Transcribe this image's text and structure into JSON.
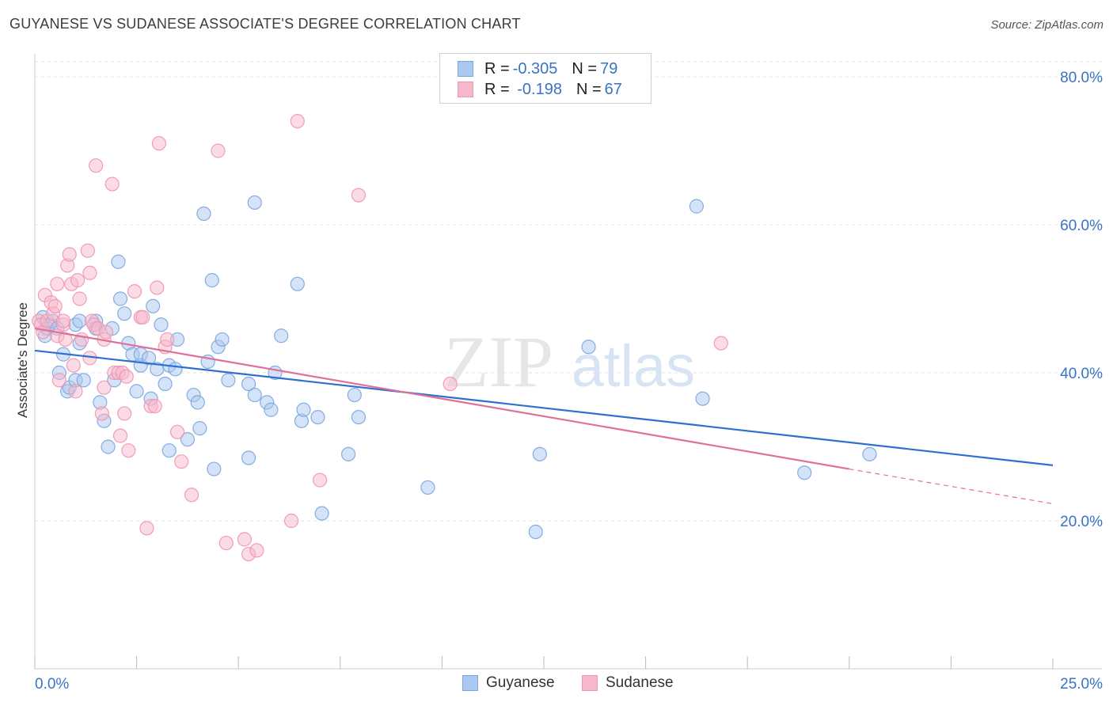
{
  "title": "GUYANESE VS SUDANESE ASSOCIATE'S DEGREE CORRELATION CHART",
  "source": "Source: ZipAtlas.com",
  "legend": {
    "rows": [
      {
        "r_label": "R = ",
        "r_value": "-0.305",
        "n_label": "N = ",
        "n_value": "79"
      },
      {
        "r_label": "R = ",
        "r_value": " -0.198",
        "n_label": "N = ",
        "n_value": "67"
      }
    ],
    "bottom": [
      "Guyanese",
      "Sudanese"
    ]
  },
  "watermark": {
    "zip": "ZIP",
    "atlas": "atlas"
  },
  "colors": {
    "guyanese_fill": "#aac8f0",
    "guyanese_stroke": "#7aa5de",
    "guyanese_line": "#2f6fd0",
    "sudanese_fill": "#f8b8cc",
    "sudanese_stroke": "#ee95b0",
    "sudanese_line": "#e0709a",
    "tick_label": "#3a72c4"
  },
  "chart_data": {
    "type": "scatter",
    "title": "GUYANESE VS SUDANESE ASSOCIATE'S DEGREE CORRELATION CHART",
    "xlabel": "",
    "ylabel": "Associate's Degree",
    "xlim": [
      0,
      25
    ],
    "ylim": [
      0,
      80
    ],
    "x_tick_labels": [
      "0.0%",
      "25.0%"
    ],
    "y_ticks": [
      20,
      40,
      60,
      80
    ],
    "y_tick_labels": [
      "20.0%",
      "40.0%",
      "60.0%",
      "80.0%"
    ],
    "grid": true,
    "series": [
      {
        "name": "Guyanese",
        "R": -0.305,
        "N": 79,
        "trend": {
          "x0": 0,
          "y0": 43.0,
          "x1": 25,
          "y1": 27.5
        },
        "points": [
          [
            0.2,
            47.5
          ],
          [
            0.25,
            45
          ],
          [
            0.35,
            46.5
          ],
          [
            0.3,
            46
          ],
          [
            0.45,
            47
          ],
          [
            0.55,
            46
          ],
          [
            0.6,
            40
          ],
          [
            0.7,
            42.5
          ],
          [
            0.8,
            37.5
          ],
          [
            0.85,
            38
          ],
          [
            1.0,
            39
          ],
          [
            1.0,
            46.5
          ],
          [
            1.1,
            44
          ],
          [
            1.2,
            39
          ],
          [
            1.1,
            47
          ],
          [
            1.5,
            47
          ],
          [
            1.5,
            46
          ],
          [
            1.6,
            36
          ],
          [
            1.7,
            33.5
          ],
          [
            1.8,
            30
          ],
          [
            1.9,
            46
          ],
          [
            1.95,
            39
          ],
          [
            2.05,
            55
          ],
          [
            2.1,
            50
          ],
          [
            2.2,
            48
          ],
          [
            2.3,
            44
          ],
          [
            2.4,
            42.5
          ],
          [
            2.5,
            37.5
          ],
          [
            2.6,
            41
          ],
          [
            2.6,
            42.5
          ],
          [
            2.8,
            42
          ],
          [
            2.85,
            36.5
          ],
          [
            2.9,
            49
          ],
          [
            3.0,
            40.5
          ],
          [
            3.1,
            46.5
          ],
          [
            3.2,
            38.5
          ],
          [
            3.3,
            41
          ],
          [
            3.3,
            29.5
          ],
          [
            3.45,
            40.5
          ],
          [
            3.5,
            44.5
          ],
          [
            3.75,
            31
          ],
          [
            3.9,
            37
          ],
          [
            4.0,
            36
          ],
          [
            4.05,
            32.5
          ],
          [
            4.15,
            61.5
          ],
          [
            4.25,
            41.5
          ],
          [
            4.35,
            52.5
          ],
          [
            4.4,
            27
          ],
          [
            4.5,
            43.5
          ],
          [
            4.6,
            44.5
          ],
          [
            4.75,
            39
          ],
          [
            5.25,
            38.5
          ],
          [
            5.25,
            28.5
          ],
          [
            5.4,
            37
          ],
          [
            5.4,
            63
          ],
          [
            5.7,
            36
          ],
          [
            5.8,
            35
          ],
          [
            5.9,
            40
          ],
          [
            6.05,
            45
          ],
          [
            6.45,
            52
          ],
          [
            6.55,
            33.5
          ],
          [
            6.6,
            35
          ],
          [
            6.95,
            34
          ],
          [
            7.05,
            21
          ],
          [
            7.7,
            29
          ],
          [
            7.85,
            37
          ],
          [
            7.95,
            34
          ],
          [
            9.65,
            24.5
          ],
          [
            12.3,
            18.5
          ],
          [
            12.4,
            29
          ],
          [
            13.6,
            43.5
          ],
          [
            16.25,
            62.5
          ],
          [
            16.4,
            36.5
          ],
          [
            18.9,
            26.5
          ],
          [
            20.5,
            29
          ]
        ]
      },
      {
        "name": "Sudanese",
        "R": -0.198,
        "N": 67,
        "trend": {
          "x0": 0,
          "y0": 46.0,
          "x1": 20,
          "y1": 27.0,
          "dashed_to_x": 25,
          "dashed_to_y": 22.3
        },
        "points": [
          [
            0.1,
            47
          ],
          [
            0.15,
            46.5
          ],
          [
            0.2,
            45.5
          ],
          [
            0.25,
            50.5
          ],
          [
            0.3,
            47
          ],
          [
            0.4,
            49.5
          ],
          [
            0.45,
            48
          ],
          [
            0.5,
            49
          ],
          [
            0.55,
            45
          ],
          [
            0.55,
            52
          ],
          [
            0.6,
            39
          ],
          [
            0.7,
            46.5
          ],
          [
            0.7,
            47
          ],
          [
            0.75,
            44.5
          ],
          [
            0.8,
            54.5
          ],
          [
            0.85,
            56
          ],
          [
            0.9,
            52
          ],
          [
            0.95,
            41
          ],
          [
            1.0,
            37.5
          ],
          [
            1.05,
            52.5
          ],
          [
            1.1,
            50
          ],
          [
            1.15,
            44.5
          ],
          [
            1.3,
            56.5
          ],
          [
            1.35,
            53.5
          ],
          [
            1.35,
            42
          ],
          [
            1.4,
            47
          ],
          [
            1.45,
            46.5
          ],
          [
            1.5,
            68
          ],
          [
            1.55,
            46
          ],
          [
            1.65,
            34.5
          ],
          [
            1.7,
            38
          ],
          [
            1.7,
            44.5
          ],
          [
            1.75,
            45.5
          ],
          [
            1.9,
            65.5
          ],
          [
            1.95,
            40
          ],
          [
            2.05,
            40
          ],
          [
            2.1,
            31.5
          ],
          [
            2.15,
            40
          ],
          [
            2.2,
            34.5
          ],
          [
            2.25,
            39.5
          ],
          [
            2.3,
            29.5
          ],
          [
            2.45,
            51
          ],
          [
            2.6,
            47.5
          ],
          [
            2.65,
            47.5
          ],
          [
            2.75,
            19
          ],
          [
            2.85,
            35.5
          ],
          [
            2.95,
            35.5
          ],
          [
            3.0,
            51.5
          ],
          [
            3.05,
            71
          ],
          [
            3.2,
            43.5
          ],
          [
            3.25,
            44.5
          ],
          [
            3.5,
            32
          ],
          [
            3.6,
            28
          ],
          [
            3.85,
            23.5
          ],
          [
            4.5,
            70
          ],
          [
            4.7,
            17
          ],
          [
            5.15,
            17.5
          ],
          [
            5.25,
            15.5
          ],
          [
            5.45,
            16
          ],
          [
            6.3,
            20
          ],
          [
            6.45,
            74
          ],
          [
            7.0,
            25.5
          ],
          [
            7.95,
            64
          ],
          [
            10.2,
            38.5
          ],
          [
            16.85,
            44
          ]
        ]
      }
    ]
  }
}
